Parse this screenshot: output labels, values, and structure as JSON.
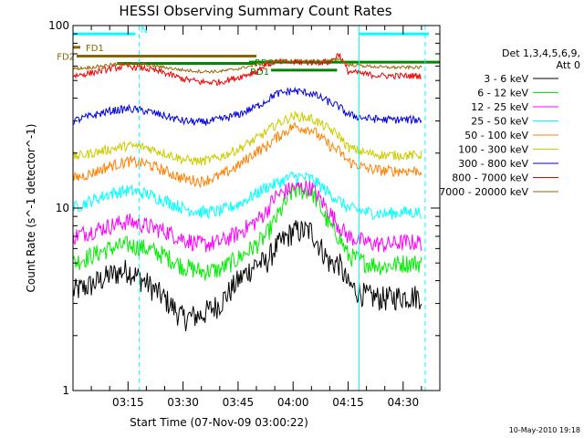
{
  "chart_data": {
    "type": "line",
    "title": "HESSI Observing Summary Count Rates",
    "xlabel": "Start Time (07-Nov-09 03:00:22)",
    "ylabel": "Count Rate (s^-1 detector^-1)",
    "y_scale": "log",
    "ylim": [
      1,
      100
    ],
    "xlim_minutes": [
      0,
      100
    ],
    "x_tick_labels": [
      "03:15",
      "03:30",
      "03:45",
      "04:00",
      "04:15",
      "04:30"
    ],
    "x_tick_minutes": [
      15,
      30,
      45,
      60,
      75,
      90
    ],
    "y_tick_labels": [
      "1",
      "10",
      "100"
    ],
    "grid": false,
    "legend_position": "right",
    "legend_header": [
      "Det 1,3,4,5,6,9,",
      "Att 0"
    ],
    "x_minutes": [
      0,
      5,
      10,
      15,
      20,
      25,
      30,
      35,
      40,
      45,
      50,
      52.5,
      55,
      60,
      65,
      70,
      72.5,
      75,
      80,
      85,
      90,
      95
    ],
    "series": [
      {
        "name": "3 - 6 keV",
        "color": "#000000",
        "values": [
          3.5,
          3.8,
          4.3,
          4.6,
          3.9,
          3.2,
          2.5,
          2.6,
          3.0,
          4.0,
          5.0,
          5.0,
          6.0,
          7.5,
          7.5,
          5.0,
          5.0,
          3.8,
          3.3,
          3.2,
          3.3,
          3.3
        ]
      },
      {
        "name": "6 - 12 keV",
        "color": "#00ee00",
        "values": [
          5.0,
          5.5,
          6.0,
          6.3,
          6.0,
          5.5,
          4.8,
          4.5,
          4.6,
          5.3,
          6.3,
          7.0,
          8.5,
          12.5,
          12.5,
          8.0,
          7.0,
          5.5,
          5.0,
          4.8,
          5.0,
          5.0
        ]
      },
      {
        "name": "12 - 25 keV",
        "color": "#ff00ff",
        "values": [
          7.0,
          7.5,
          8.0,
          8.5,
          8.0,
          7.5,
          6.8,
          6.3,
          6.5,
          7.3,
          8.5,
          9.5,
          11.5,
          13.0,
          13.0,
          9.5,
          8.0,
          7.0,
          6.5,
          6.3,
          6.5,
          6.5
        ]
      },
      {
        "name": "25 - 50 keV",
        "color": "#00ffff",
        "values": [
          10.0,
          11.0,
          12.0,
          12.5,
          12.0,
          11.0,
          10.0,
          9.5,
          9.6,
          10.5,
          12.0,
          13.0,
          13.5,
          15.0,
          14.5,
          12.0,
          11.0,
          10.0,
          9.5,
          9.3,
          9.5,
          9.5
        ]
      },
      {
        "name": "50 - 100 keV",
        "color": "#ff7f00",
        "values": [
          14.5,
          15.5,
          17.0,
          18.0,
          17.5,
          16.0,
          14.5,
          14.0,
          15.0,
          17.0,
          20.5,
          21.5,
          24.0,
          28.0,
          27.0,
          22.0,
          20.5,
          18.0,
          16.5,
          16.0,
          16.0,
          16.0
        ]
      },
      {
        "name": "100 - 300 keV",
        "color": "#cccc00",
        "values": [
          19.0,
          20.0,
          21.0,
          22.0,
          21.5,
          20.0,
          18.5,
          18.0,
          19.0,
          21.0,
          24.0,
          26.0,
          28.5,
          32.0,
          31.0,
          27.0,
          25.0,
          21.5,
          20.0,
          19.5,
          19.5,
          19.5
        ]
      },
      {
        "name": "300 - 800 keV",
        "color": "#0000dd",
        "values": [
          30.0,
          32.0,
          34.0,
          35.0,
          34.0,
          32.0,
          30.0,
          29.5,
          30.5,
          32.5,
          36.0,
          38.5,
          42.0,
          44.0,
          42.5,
          38.0,
          36.0,
          32.5,
          31.0,
          30.5,
          30.5,
          30.5
        ]
      },
      {
        "name": "800 - 7000 keV",
        "color": "#ee0000",
        "values": [
          53.0,
          55.0,
          58.0,
          60.0,
          58.0,
          55.0,
          51.0,
          49.0,
          49.0,
          52.0,
          56.0,
          61.0,
          63.0,
          63.0,
          63.0,
          63.0,
          70.0,
          56.0,
          54.0,
          53.0,
          53.0,
          53.0
        ]
      },
      {
        "name": "7000 - 20000 keV",
        "color": "#996600",
        "values": [
          58.0,
          59.0,
          61.0,
          62.0,
          61.0,
          59.0,
          57.0,
          56.0,
          56.0,
          58.0,
          61.0,
          63.0,
          64.0,
          64.0,
          64.0,
          64.0,
          66.0,
          61.0,
          60.0,
          59.0,
          59.0,
          59.0
        ]
      }
    ],
    "annotations": {
      "flags": [
        {
          "label": "FD1",
          "color": "#886600",
          "x_start": 0,
          "x_end": 2,
          "y": 76
        },
        {
          "label": "FD2",
          "color": "#886600",
          "x_start": 1,
          "x_end": 50,
          "y": 68
        },
        {
          "label": "N",
          "color": "#00ffff",
          "x_start": 0,
          "x_end": 17,
          "y": 90
        },
        {
          "label": "",
          "color": "#00ffff",
          "x_start": 78,
          "x_end": 97,
          "y": 90
        },
        {
          "label": "RD0",
          "color": "#008800",
          "x_start": 48,
          "x_end": 100,
          "y": 63
        },
        {
          "label": "",
          "color": "#008800",
          "x_start": 12,
          "x_end": 50,
          "y": 62
        },
        {
          "label": "RD1",
          "color": "#008800",
          "x_start": 54,
          "x_end": 72,
          "y": 57
        }
      ],
      "solid_vlines_minutes": [
        0,
        78
      ],
      "dashed_vlines_minutes": [
        18,
        96
      ]
    }
  },
  "footer": {
    "timestamp": "10-May-2010 19:18"
  }
}
